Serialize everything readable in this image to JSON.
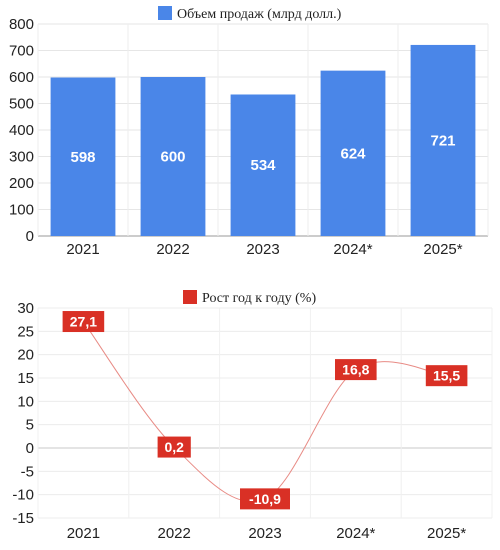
{
  "chart_data": [
    {
      "type": "bar",
      "legend": {
        "label": "Объем продаж (млрд долл.)",
        "position": "top-center"
      },
      "categories": [
        "2021",
        "2022",
        "2023",
        "2024*",
        "2025*"
      ],
      "series": [
        {
          "name": "Объем продаж (млрд долл.)",
          "values": [
            598,
            600,
            534,
            624,
            721
          ],
          "labels": [
            "598",
            "600",
            "534",
            "624",
            "721"
          ]
        }
      ],
      "yticks": [
        "0",
        "100",
        "200",
        "300",
        "400",
        "500",
        "600",
        "700",
        "800"
      ],
      "ylim": [
        0,
        800
      ],
      "grid": true,
      "color": "#4a86e8"
    },
    {
      "type": "line",
      "legend": {
        "label": "Рост год к году (%)",
        "position": "top-center"
      },
      "categories": [
        "2021",
        "2022",
        "2023",
        "2024*",
        "2025*"
      ],
      "series": [
        {
          "name": "Рост год к году (%)",
          "values": [
            27.1,
            0.2,
            -10.9,
            16.8,
            15.5
          ],
          "labels": [
            "27,1",
            "0,2",
            "-10,9",
            "16,8",
            "15,5"
          ]
        }
      ],
      "yticks": [
        "-15",
        "-10",
        "-5",
        "0",
        "5",
        "10",
        "15",
        "20",
        "25",
        "30"
      ],
      "ylim": [
        -15,
        30
      ],
      "grid": true,
      "color": "#d93025",
      "line_color": "#e88b85"
    }
  ]
}
